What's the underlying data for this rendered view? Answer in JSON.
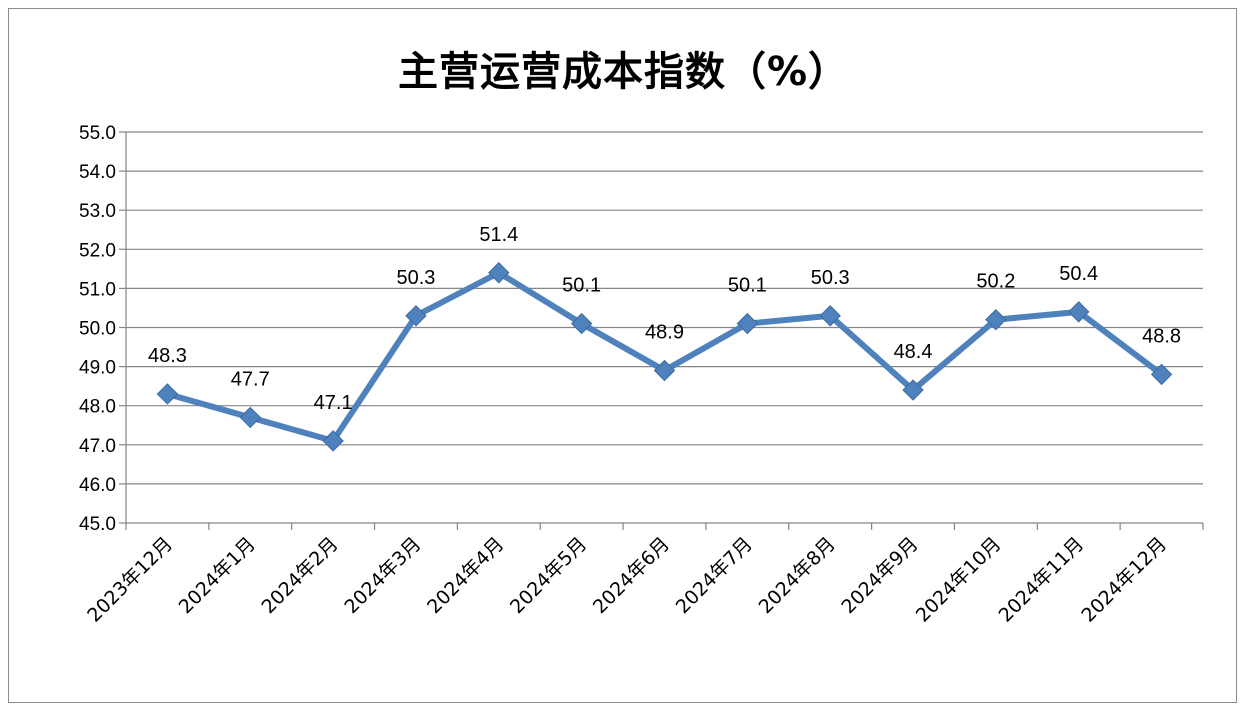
{
  "chart_data": {
    "type": "line",
    "title": "主营运营成本指数（%）",
    "categories": [
      "2023年12月",
      "2024年1月",
      "2024年2月",
      "2024年3月",
      "2024年4月",
      "2024年5月",
      "2024年6月",
      "2024年7月",
      "2024年8月",
      "2024年9月",
      "2024年10月",
      "2024年11月",
      "2024年12月"
    ],
    "series": [
      {
        "values": [
          48.3,
          47.7,
          47.1,
          50.3,
          51.4,
          50.1,
          48.9,
          50.1,
          50.3,
          48.4,
          50.2,
          50.4,
          48.8
        ],
        "data_labels": [
          "48.3",
          "47.7",
          "47.1",
          "50.3",
          "51.4",
          "50.1",
          "48.9",
          "50.1",
          "50.3",
          "48.4",
          "50.2",
          "50.4",
          "48.8"
        ],
        "color": "#4f81bd",
        "marker": "diamond"
      }
    ],
    "ylim": [
      45.0,
      55.0
    ],
    "yticks": [
      "45.0",
      "46.0",
      "47.0",
      "48.0",
      "49.0",
      "50.0",
      "51.0",
      "52.0",
      "53.0",
      "54.0",
      "55.0"
    ],
    "grid": true,
    "legend": "none",
    "xlabel": "",
    "ylabel": ""
  }
}
